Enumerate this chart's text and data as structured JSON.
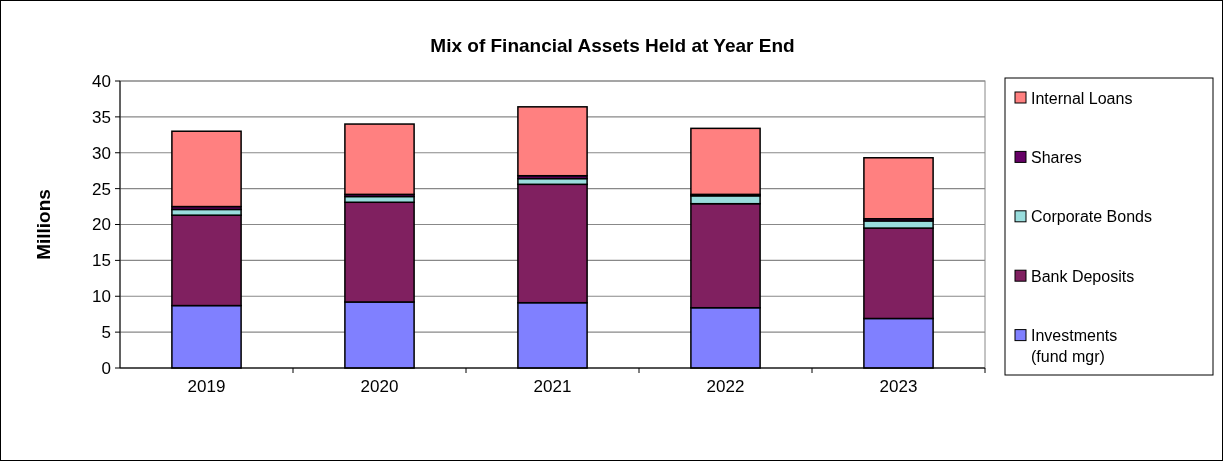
{
  "chart_data": {
    "type": "bar",
    "title": "Mix of Financial Assets Held at Year End",
    "ylabel": "Millions",
    "categories": [
      "2019",
      "2020",
      "2021",
      "2022",
      "2023"
    ],
    "stacked": true,
    "ylim": [
      0,
      40
    ],
    "yticks": [
      0,
      5,
      10,
      15,
      20,
      25,
      30,
      35,
      40
    ],
    "grid": "y",
    "legend": "right",
    "series": [
      {
        "name": "Investments (fund mgr)",
        "color": "#8080ff",
        "values": [
          8.7,
          9.2,
          9.1,
          8.4,
          6.9
        ]
      },
      {
        "name": "Bank Deposits",
        "color": "#802060",
        "values": [
          12.6,
          13.9,
          16.5,
          14.5,
          12.6
        ]
      },
      {
        "name": "Corporate Bonds",
        "color": "#99dddd",
        "values": [
          0.8,
          0.8,
          0.8,
          1.1,
          1.0
        ]
      },
      {
        "name": "Shares",
        "color": "#660066",
        "values": [
          0.4,
          0.3,
          0.4,
          0.2,
          0.3
        ]
      },
      {
        "name": "Internal Loans",
        "color": "#ff8080",
        "values": [
          10.5,
          9.8,
          9.6,
          9.2,
          8.5
        ]
      }
    ]
  }
}
